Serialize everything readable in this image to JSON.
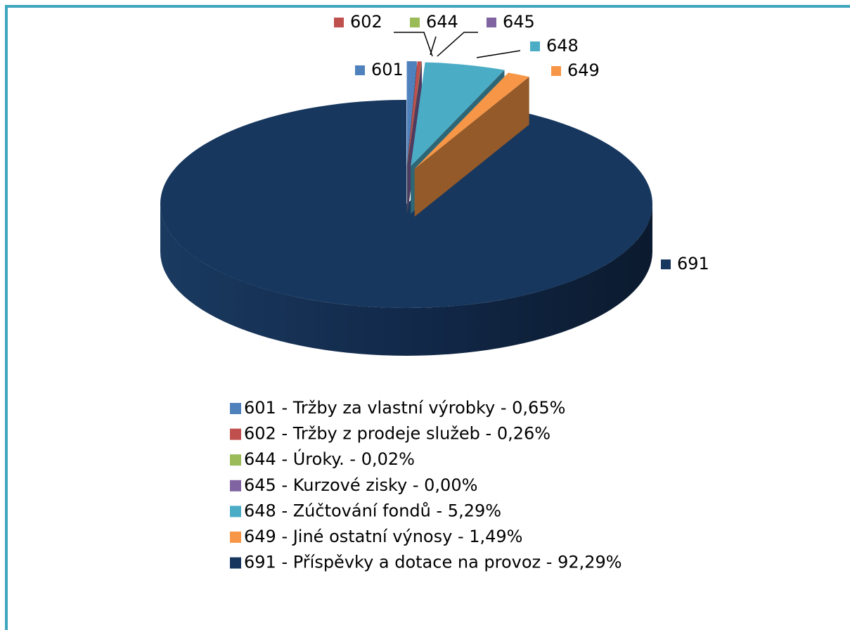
{
  "chart_data": {
    "type": "pie3d",
    "categories": [
      "601",
      "602",
      "644",
      "645",
      "648",
      "649",
      "691"
    ],
    "values": [
      0.65,
      0.26,
      0.02,
      0.0,
      5.29,
      1.49,
      92.29
    ],
    "legend": [
      "601 - Tržby za vlastní výrobky - 0,65%",
      "602 - Tržby z prodeje služeb - 0,26%",
      "644 - Úroky. - 0,02%",
      "645 - Kurzové zisky - 0,00%",
      "648 - Zúčtování fondů - 5,29%",
      "649 - Jiné ostatní výnosy - 1,49%",
      "691 - Příspěvky a dotace na provoz - 92,29%"
    ],
    "colors": [
      "#4f81bd",
      "#c0504d",
      "#9bbb59",
      "#8064a2",
      "#4bacc6",
      "#f79646",
      "#17375e"
    ]
  }
}
